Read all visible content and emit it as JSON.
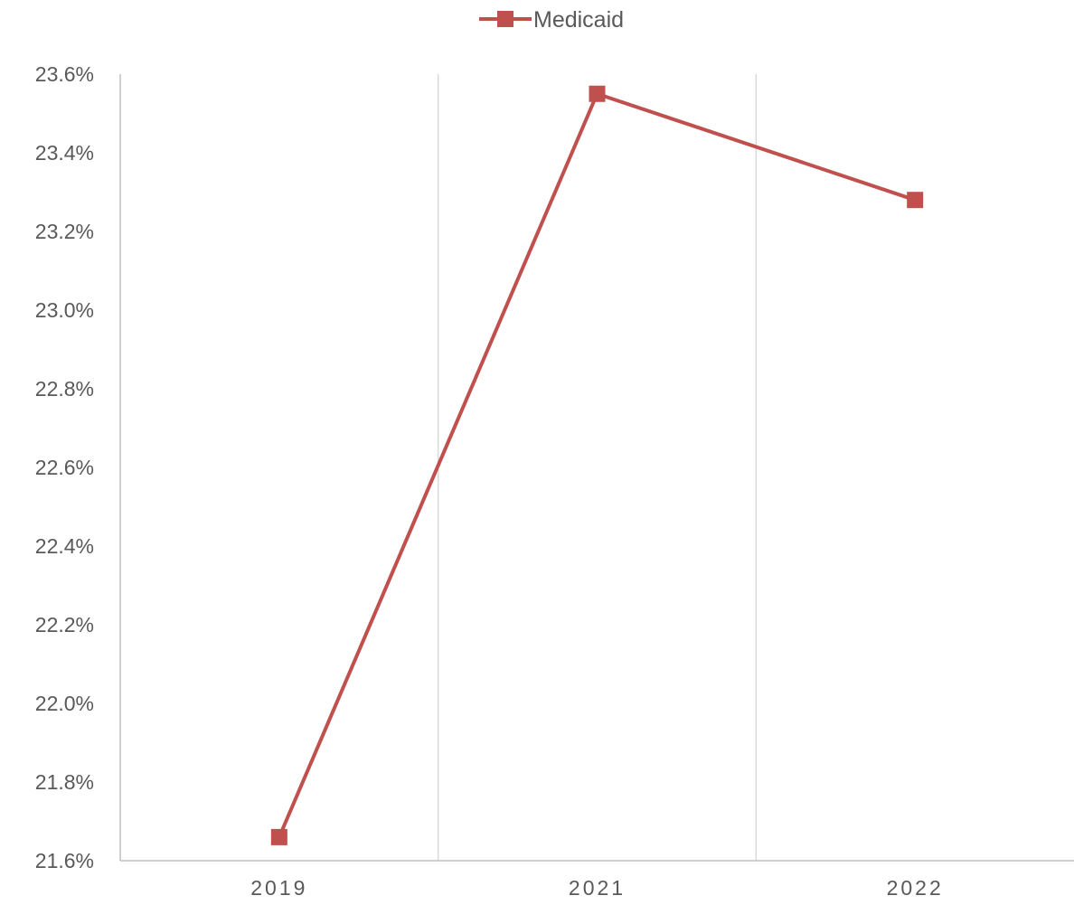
{
  "chart_data": {
    "type": "line",
    "categories": [
      "2019",
      "2021",
      "2022"
    ],
    "series": [
      {
        "name": "Medicaid",
        "values": [
          21.66,
          23.55,
          23.28
        ],
        "color": "#c0504d",
        "marker": "square"
      }
    ],
    "y_tick_labels": [
      "21.6%",
      "21.8%",
      "22.0%",
      "22.2%",
      "22.4%",
      "22.6%",
      "22.8%",
      "23.0%",
      "23.2%",
      "23.4%",
      "23.6%"
    ],
    "ylim": [
      21.6,
      23.6
    ],
    "y_step": 0.2,
    "y_unit": "%",
    "title": "",
    "xlabel": "",
    "ylabel": "",
    "legend_position": "top-center",
    "grid": "vertical-category-separators",
    "colors": {
      "series": "#c0504d",
      "grid": "#d9d9d9",
      "axis": "#bfbfbf",
      "text": "#595959"
    }
  }
}
